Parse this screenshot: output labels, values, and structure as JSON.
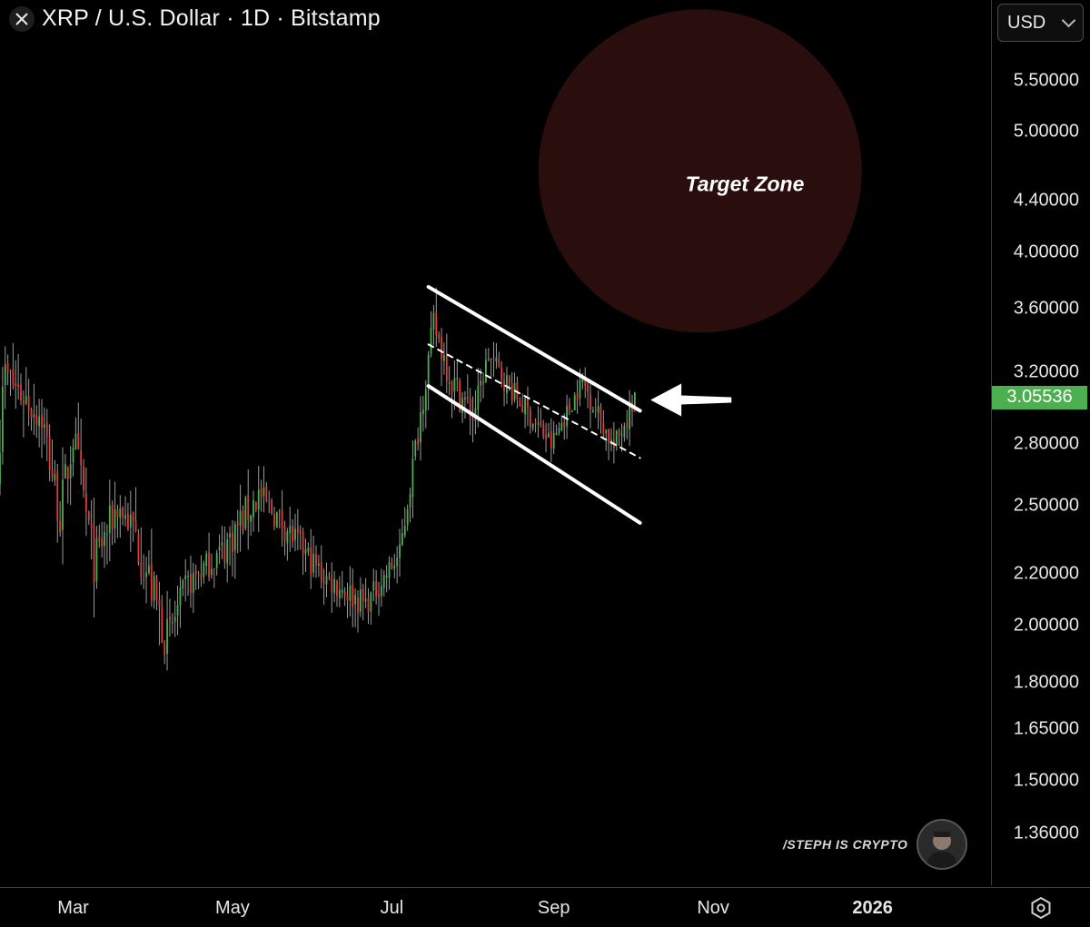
{
  "header": {
    "title": "XRP / U.S. Dollar · 1D · Bitstamp",
    "close_icon": "x-icon"
  },
  "currency": {
    "label": "USD",
    "icon": "chevron-down-icon"
  },
  "price_axis": {
    "ticks": [
      "5.50000",
      "5.00000",
      "4.40000",
      "4.00000",
      "3.60000",
      "3.20000",
      "2.80000",
      "2.50000",
      "2.20000",
      "2.00000",
      "1.80000",
      "1.65000",
      "1.50000",
      "1.36000"
    ],
    "last_price": "3.05536"
  },
  "time_axis": {
    "ticks": [
      "Mar",
      "May",
      "Jul",
      "Sep",
      "Nov",
      "2026"
    ]
  },
  "annotations": {
    "target_zone": "Target Zone",
    "watermark": "/STEPH IS CRYPTO"
  },
  "settings_icon": "gear-hexagon-icon",
  "colors": {
    "up": "#4caf50",
    "down": "#e53935",
    "target_zone": "#2a0e0e",
    "last_price_bg": "#4caf50"
  },
  "chart_data": {
    "type": "candlestick",
    "title": "XRP / U.S. Dollar · 1D · Bitstamp",
    "x_range": [
      "2025-02-01",
      "2026-02-15"
    ],
    "y_scale": "log",
    "ylim": [
      1.25,
      6.3
    ],
    "last_price": 3.05536,
    "grid": false,
    "segments": [
      {
        "from": "2025-02-01",
        "to": "2025-02-03",
        "start": 2.6,
        "end": 3.2,
        "wick": 0.1
      },
      {
        "from": "2025-02-03",
        "to": "2025-02-18",
        "start": 3.2,
        "end": 2.95,
        "wick": 0.09
      },
      {
        "from": "2025-02-18",
        "to": "2025-02-25",
        "start": 2.95,
        "end": 2.45,
        "wick": 0.09
      },
      {
        "from": "2025-02-25",
        "to": "2025-03-02",
        "start": 2.45,
        "end": 2.85,
        "wick": 0.1
      },
      {
        "from": "2025-03-02",
        "to": "2025-03-10",
        "start": 2.85,
        "end": 2.25,
        "wick": 0.09
      },
      {
        "from": "2025-03-10",
        "to": "2025-03-19",
        "start": 2.25,
        "end": 2.5,
        "wick": 0.08
      },
      {
        "from": "2025-03-19",
        "to": "2025-03-25",
        "start": 2.5,
        "end": 2.4,
        "wick": 0.07
      },
      {
        "from": "2025-03-25",
        "to": "2025-04-07",
        "start": 2.4,
        "end": 1.95,
        "wick": 0.1
      },
      {
        "from": "2025-04-07",
        "to": "2025-04-14",
        "start": 1.95,
        "end": 2.15,
        "wick": 0.06
      },
      {
        "from": "2025-04-14",
        "to": "2025-04-28",
        "start": 2.15,
        "end": 2.3,
        "wick": 0.06
      },
      {
        "from": "2025-04-28",
        "to": "2025-05-12",
        "start": 2.3,
        "end": 2.55,
        "wick": 0.08
      },
      {
        "from": "2025-05-12",
        "to": "2025-05-21",
        "start": 2.55,
        "end": 2.42,
        "wick": 0.06
      },
      {
        "from": "2025-05-21",
        "to": "2025-06-05",
        "start": 2.42,
        "end": 2.2,
        "wick": 0.06
      },
      {
        "from": "2025-06-05",
        "to": "2025-06-22",
        "start": 2.2,
        "end": 2.08,
        "wick": 0.06
      },
      {
        "from": "2025-06-22",
        "to": "2025-07-05",
        "start": 2.08,
        "end": 2.28,
        "wick": 0.05
      },
      {
        "from": "2025-07-05",
        "to": "2025-07-18",
        "start": 2.28,
        "end": 3.5,
        "wick": 0.06
      },
      {
        "from": "2025-07-18",
        "to": "2025-07-25",
        "start": 3.5,
        "end": 3.15,
        "wick": 0.07
      },
      {
        "from": "2025-07-25",
        "to": "2025-08-02",
        "start": 3.15,
        "end": 2.95,
        "wick": 0.07
      },
      {
        "from": "2025-08-02",
        "to": "2025-08-08",
        "start": 2.95,
        "end": 3.3,
        "wick": 0.05
      },
      {
        "from": "2025-08-08",
        "to": "2025-08-19",
        "start": 3.3,
        "end": 3.05,
        "wick": 0.05
      },
      {
        "from": "2025-08-19",
        "to": "2025-09-01",
        "start": 3.05,
        "end": 2.8,
        "wick": 0.05
      },
      {
        "from": "2025-09-01",
        "to": "2025-09-13",
        "start": 2.8,
        "end": 3.15,
        "wick": 0.04
      },
      {
        "from": "2025-09-13",
        "to": "2025-09-25",
        "start": 3.15,
        "end": 2.78,
        "wick": 0.05
      },
      {
        "from": "2025-09-25",
        "to": "2025-10-03",
        "start": 2.78,
        "end": 3.06,
        "wick": 0.05
      }
    ],
    "channel": {
      "upper": [
        [
          "2025-07-15",
          3.75
        ],
        [
          "2025-10-04",
          2.98
        ]
      ],
      "mid": [
        [
          "2025-07-15",
          3.37
        ],
        [
          "2025-10-04",
          2.73
        ]
      ],
      "lower": [
        [
          "2025-07-15",
          3.12
        ],
        [
          "2025-10-04",
          2.42
        ]
      ]
    },
    "target_zone": {
      "center_date": "2025-10-27",
      "center_price": 4.65,
      "label": "Target Zone"
    },
    "arrow": {
      "from": [
        "2025-11-08",
        3.04
      ],
      "to": [
        "2025-10-08",
        3.04
      ]
    }
  }
}
